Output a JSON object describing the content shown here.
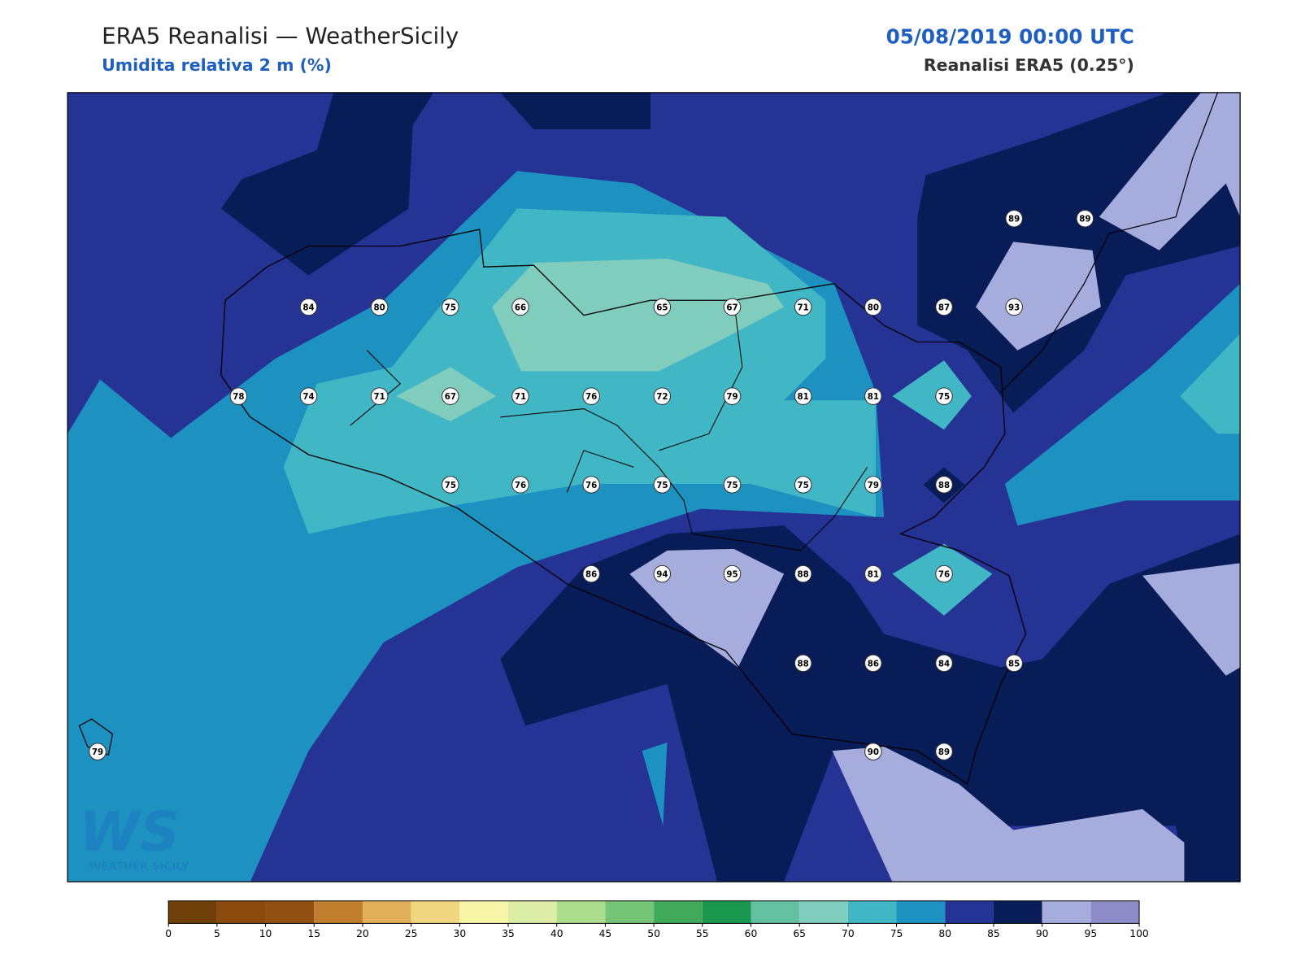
{
  "header": {
    "title": "ERA5 Reanalisi — WeatherSicily",
    "subtitle": "Umidita relativa 2 m (%)",
    "date": "05/08/2019 00:00 UTC",
    "source": "Reanalisi ERA5 (0.25°)"
  },
  "stations": {
    "values": [
      89,
      89,
      84,
      80,
      75,
      66,
      65,
      67,
      71,
      80,
      87,
      93,
      78,
      74,
      71,
      67,
      71,
      76,
      72,
      79,
      81,
      81,
      75,
      75,
      76,
      76,
      75,
      75,
      75,
      79,
      88,
      86,
      94,
      95,
      88,
      81,
      76,
      88,
      86,
      84,
      85,
      79,
      90,
      89
    ]
  },
  "colorbar": {
    "ticks": [
      0,
      5,
      10,
      15,
      20,
      25,
      30,
      35,
      40,
      45,
      50,
      55,
      60,
      65,
      70,
      75,
      80,
      85,
      90,
      95,
      100
    ],
    "colors": [
      "#6e3f08",
      "#8a4a0e",
      "#8f5012",
      "#bf7f2e",
      "#e0b05a",
      "#f0d67e",
      "#f6f5a8",
      "#dbeda6",
      "#acdc8e",
      "#76c476",
      "#40a95a",
      "#1a9850",
      "#63c1a2",
      "#80cdbd",
      "#41b6c4",
      "#1d91c0",
      "#253494",
      "#081d58",
      "#a6acdc",
      "#8e8cc8"
    ]
  },
  "logo": {
    "mark": "WS",
    "text": "WEATHER SICILY"
  }
}
